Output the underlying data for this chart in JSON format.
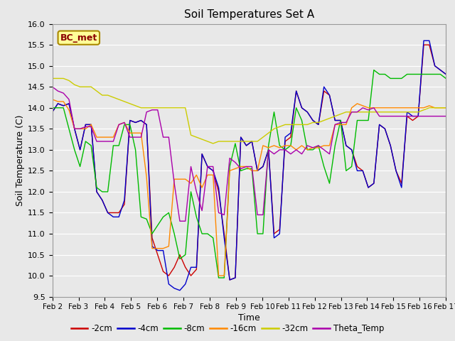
{
  "title": "Soil Temperatures Set A",
  "xlabel": "Time",
  "ylabel": "Soil Temperature (C)",
  "ylim": [
    9.5,
    16.0
  ],
  "yticks": [
    9.5,
    10.0,
    10.5,
    11.0,
    11.5,
    12.0,
    12.5,
    13.0,
    13.5,
    14.0,
    14.5,
    15.0,
    15.5,
    16.0
  ],
  "annotation": "BC_met",
  "colors": {
    "-2cm": "#cc0000",
    "-4cm": "#0000cc",
    "-8cm": "#00bb00",
    "-16cm": "#ff8800",
    "-32cm": "#cccc00",
    "Theta_Temp": "#aa00aa"
  },
  "x_labels": [
    "Feb 2",
    "Feb 3",
    "Feb 4",
    "Feb 5",
    "Feb 6",
    "Feb 7",
    "Feb 8",
    "Feb 9",
    "Feb 10",
    "Feb 11",
    "Feb 12",
    "Feb 13",
    "Feb 14",
    "Feb 15",
    "Feb 16",
    "Feb 17"
  ],
  "series": {
    "-2cm": [
      13.9,
      14.1,
      14.05,
      14.1,
      13.5,
      13.0,
      13.6,
      13.6,
      12.0,
      11.8,
      11.5,
      11.5,
      11.5,
      11.7,
      13.7,
      13.65,
      13.7,
      13.6,
      10.9,
      10.5,
      10.1,
      10.0,
      10.2,
      10.5,
      10.2,
      10.0,
      10.15,
      12.9,
      12.6,
      12.5,
      12.0,
      11.0,
      9.9,
      9.95,
      13.3,
      13.1,
      13.2,
      12.5,
      12.6,
      13.0,
      11.0,
      11.1,
      13.2,
      13.3,
      14.4,
      14.0,
      13.9,
      13.7,
      13.6,
      14.4,
      14.3,
      13.7,
      13.7,
      13.1,
      13.0,
      12.6,
      12.5,
      12.1,
      12.2,
      13.6,
      13.5,
      13.1,
      12.5,
      12.2,
      13.8,
      13.7,
      13.8,
      15.5,
      15.5,
      15.0,
      14.9,
      14.8
    ],
    "-4cm": [
      13.9,
      14.1,
      14.05,
      14.1,
      13.5,
      13.0,
      13.6,
      13.6,
      12.0,
      11.8,
      11.5,
      11.4,
      11.4,
      11.8,
      13.7,
      13.65,
      13.7,
      13.6,
      10.7,
      10.6,
      10.6,
      9.8,
      9.7,
      9.65,
      9.8,
      10.2,
      10.2,
      12.9,
      12.6,
      12.5,
      12.1,
      10.9,
      9.9,
      9.95,
      13.3,
      13.1,
      13.2,
      12.5,
      12.6,
      13.0,
      10.9,
      11.0,
      13.3,
      13.4,
      14.4,
      14.0,
      13.9,
      13.7,
      13.6,
      14.5,
      14.3,
      13.7,
      13.7,
      13.1,
      13.0,
      12.5,
      12.5,
      12.1,
      12.2,
      13.6,
      13.5,
      13.1,
      12.5,
      12.1,
      13.9,
      13.8,
      13.8,
      15.6,
      15.6,
      15.0,
      14.9,
      14.8
    ],
    "-8cm": [
      14.0,
      14.0,
      14.0,
      13.5,
      13.0,
      12.6,
      13.2,
      13.1,
      12.1,
      12.0,
      12.0,
      13.1,
      13.1,
      13.6,
      13.6,
      13.0,
      11.4,
      11.35,
      11.0,
      11.2,
      11.4,
      11.5,
      11.0,
      10.4,
      10.5,
      12.0,
      11.4,
      11.0,
      11.0,
      10.9,
      9.95,
      9.95,
      12.6,
      13.15,
      12.5,
      12.55,
      12.55,
      11.0,
      11.0,
      13.1,
      13.9,
      13.1,
      13.0,
      13.1,
      14.0,
      13.7,
      13.0,
      13.0,
      13.1,
      12.6,
      12.2,
      13.1,
      13.7,
      12.5,
      12.6,
      13.7,
      13.7,
      13.7,
      14.9,
      14.8,
      14.8,
      14.7,
      14.7,
      14.7,
      14.8,
      14.8,
      14.8,
      14.8,
      14.8,
      14.8,
      14.8,
      14.7
    ],
    "-16cm": [
      14.2,
      14.15,
      14.15,
      13.95,
      13.5,
      13.5,
      13.5,
      13.6,
      13.3,
      13.3,
      13.3,
      13.3,
      13.6,
      13.65,
      13.4,
      13.4,
      13.4,
      12.35,
      10.65,
      10.65,
      10.65,
      10.7,
      12.3,
      12.3,
      12.3,
      12.2,
      12.4,
      12.1,
      12.4,
      12.4,
      10.0,
      10.0,
      12.5,
      12.55,
      12.6,
      12.6,
      12.5,
      12.5,
      13.1,
      13.05,
      13.1,
      13.05,
      13.1,
      13.1,
      13.0,
      13.1,
      13.0,
      13.05,
      13.05,
      13.1,
      13.1,
      13.6,
      13.6,
      13.6,
      14.0,
      14.1,
      14.05,
      14.0,
      14.0,
      14.0,
      14.0,
      14.0,
      14.0,
      14.0,
      14.0,
      14.0,
      14.0,
      14.0,
      14.05,
      14.0,
      14.0,
      14.0
    ],
    "-32cm": [
      14.7,
      14.7,
      14.7,
      14.65,
      14.55,
      14.5,
      14.5,
      14.5,
      14.4,
      14.3,
      14.3,
      14.25,
      14.2,
      14.15,
      14.1,
      14.05,
      14.0,
      14.0,
      14.0,
      14.0,
      14.0,
      14.0,
      14.0,
      14.0,
      14.0,
      13.35,
      13.3,
      13.25,
      13.2,
      13.15,
      13.2,
      13.2,
      13.2,
      13.2,
      13.2,
      13.2,
      13.2,
      13.2,
      13.3,
      13.4,
      13.5,
      13.55,
      13.6,
      13.6,
      13.6,
      13.6,
      13.6,
      13.65,
      13.65,
      13.7,
      13.75,
      13.8,
      13.85,
      13.9,
      13.9,
      13.9,
      13.9,
      13.9,
      13.9,
      13.9,
      13.9,
      13.9,
      13.9,
      13.9,
      13.9,
      13.9,
      13.9,
      13.95,
      14.0,
      14.0,
      14.0,
      14.0
    ],
    "Theta_Temp": [
      14.5,
      14.4,
      14.35,
      14.2,
      13.5,
      13.5,
      13.55,
      13.55,
      13.2,
      13.2,
      13.2,
      13.2,
      13.6,
      13.65,
      13.3,
      13.3,
      13.3,
      13.9,
      13.95,
      13.95,
      13.3,
      13.3,
      12.2,
      11.3,
      11.3,
      12.6,
      12.0,
      11.55,
      12.6,
      12.6,
      11.5,
      11.45,
      12.8,
      12.7,
      12.55,
      12.6,
      12.6,
      11.45,
      11.45,
      13.0,
      12.9,
      13.0,
      13.0,
      12.9,
      13.0,
      12.9,
      13.1,
      13.05,
      13.1,
      13.0,
      12.9,
      13.6,
      13.65,
      13.65,
      13.9,
      13.9,
      14.0,
      13.95,
      14.0,
      13.8,
      13.8,
      13.8,
      13.8,
      13.8,
      13.8,
      13.8,
      13.8,
      13.8,
      13.8,
      13.8,
      13.8,
      13.8
    ]
  }
}
